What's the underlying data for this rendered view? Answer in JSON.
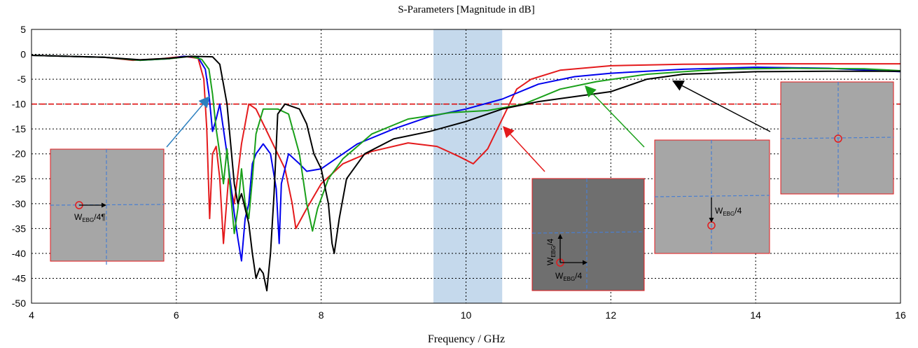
{
  "chart_data": {
    "type": "line",
    "title": "S-Parameters [Magnitude in dB]",
    "xlabel": "Frequency / GHz",
    "ylabel": "",
    "xlim": [
      4,
      16
    ],
    "ylim": [
      -50,
      5
    ],
    "xticks": [
      4,
      6,
      8,
      10,
      12,
      14,
      16
    ],
    "yticks": [
      5,
      0,
      -5,
      -10,
      -15,
      -20,
      -25,
      -30,
      -35,
      -40,
      -45,
      -50
    ],
    "grid": true,
    "threshold": {
      "y": -10,
      "color": "#e00000"
    },
    "band": {
      "x0": 9.55,
      "x1": 10.5,
      "color": "#c5d9ec"
    },
    "series": [
      {
        "color": "#e41a1c",
        "points": [
          [
            4,
            -0.2
          ],
          [
            5,
            -0.6
          ],
          [
            5.4,
            -1.2
          ],
          [
            5.8,
            -0.9
          ],
          [
            6.1,
            -0.4
          ],
          [
            6.3,
            -0.8
          ],
          [
            6.38,
            -5
          ],
          [
            6.42,
            -15
          ],
          [
            6.46,
            -33
          ],
          [
            6.5,
            -20
          ],
          [
            6.55,
            -18.5
          ],
          [
            6.6,
            -25
          ],
          [
            6.65,
            -38
          ],
          [
            6.72,
            -25
          ],
          [
            6.8,
            -30
          ],
          [
            6.9,
            -18
          ],
          [
            7,
            -10
          ],
          [
            7.1,
            -11
          ],
          [
            7.3,
            -17
          ],
          [
            7.5,
            -23
          ],
          [
            7.6,
            -30
          ],
          [
            7.65,
            -35
          ],
          [
            7.8,
            -31
          ],
          [
            8,
            -26
          ],
          [
            8.3,
            -22
          ],
          [
            8.7,
            -19.5
          ],
          [
            9.2,
            -17.8
          ],
          [
            9.6,
            -18.5
          ],
          [
            9.9,
            -20.5
          ],
          [
            10.1,
            -22
          ],
          [
            10.3,
            -19
          ],
          [
            10.5,
            -13
          ],
          [
            10.7,
            -7
          ],
          [
            10.9,
            -5
          ],
          [
            11.3,
            -3.2
          ],
          [
            12,
            -2.3
          ],
          [
            13,
            -2
          ],
          [
            14,
            -1.9
          ],
          [
            15,
            -1.9
          ],
          [
            16,
            -1.9
          ]
        ]
      },
      {
        "color": "#0000ee",
        "points": [
          [
            4,
            -0.2
          ],
          [
            5,
            -0.6
          ],
          [
            5.5,
            -1.2
          ],
          [
            5.9,
            -0.9
          ],
          [
            6.1,
            -0.4
          ],
          [
            6.3,
            -0.6
          ],
          [
            6.4,
            -3
          ],
          [
            6.45,
            -8
          ],
          [
            6.5,
            -15.5
          ],
          [
            6.55,
            -13
          ],
          [
            6.6,
            -10
          ],
          [
            6.7,
            -20
          ],
          [
            6.8,
            -32
          ],
          [
            6.85,
            -37
          ],
          [
            6.9,
            -41.5
          ],
          [
            6.95,
            -33
          ],
          [
            7,
            -30
          ],
          [
            7.05,
            -22
          ],
          [
            7.1,
            -20
          ],
          [
            7.2,
            -18
          ],
          [
            7.3,
            -20
          ],
          [
            7.38,
            -27
          ],
          [
            7.42,
            -38
          ],
          [
            7.45,
            -26
          ],
          [
            7.55,
            -20
          ],
          [
            7.7,
            -22
          ],
          [
            7.8,
            -23.5
          ],
          [
            8,
            -23
          ],
          [
            8.5,
            -18
          ],
          [
            9,
            -15
          ],
          [
            9.5,
            -12.5
          ],
          [
            10,
            -11
          ],
          [
            10.5,
            -9
          ],
          [
            11,
            -6
          ],
          [
            11.5,
            -4.5
          ],
          [
            12,
            -3.8
          ],
          [
            13,
            -3
          ],
          [
            14,
            -2.6
          ],
          [
            15,
            -2.8
          ],
          [
            16,
            -3.5
          ]
        ]
      },
      {
        "color": "#1aa01a",
        "points": [
          [
            4,
            -0.2
          ],
          [
            5,
            -0.6
          ],
          [
            5.5,
            -1.2
          ],
          [
            5.9,
            -0.9
          ],
          [
            6.2,
            -0.4
          ],
          [
            6.35,
            -1
          ],
          [
            6.45,
            -3
          ],
          [
            6.5,
            -8
          ],
          [
            6.55,
            -15
          ],
          [
            6.6,
            -20
          ],
          [
            6.65,
            -26
          ],
          [
            6.7,
            -19
          ],
          [
            6.75,
            -28
          ],
          [
            6.8,
            -36
          ],
          [
            6.85,
            -31
          ],
          [
            6.9,
            -23
          ],
          [
            6.95,
            -30
          ],
          [
            7,
            -33
          ],
          [
            7.05,
            -25
          ],
          [
            7.1,
            -16
          ],
          [
            7.2,
            -11
          ],
          [
            7.4,
            -11
          ],
          [
            7.55,
            -12
          ],
          [
            7.7,
            -20
          ],
          [
            7.8,
            -30
          ],
          [
            7.88,
            -35.5
          ],
          [
            7.95,
            -31
          ],
          [
            8.1,
            -25
          ],
          [
            8.3,
            -21
          ],
          [
            8.7,
            -16
          ],
          [
            9.2,
            -13
          ],
          [
            9.8,
            -11.7
          ],
          [
            10.3,
            -11.3
          ],
          [
            10.8,
            -10
          ],
          [
            11.3,
            -7
          ],
          [
            11.8,
            -5.5
          ],
          [
            12.5,
            -4
          ],
          [
            13.5,
            -3
          ],
          [
            14.5,
            -2.8
          ],
          [
            15.5,
            -2.9
          ],
          [
            16,
            -3.3
          ]
        ]
      },
      {
        "color": "#000000",
        "points": [
          [
            4,
            -0.2
          ],
          [
            5,
            -0.6
          ],
          [
            5.5,
            -1.1
          ],
          [
            5.9,
            -0.8
          ],
          [
            6.2,
            -0.4
          ],
          [
            6.5,
            -0.5
          ],
          [
            6.6,
            -2
          ],
          [
            6.65,
            -6
          ],
          [
            6.7,
            -10
          ],
          [
            6.75,
            -18
          ],
          [
            6.8,
            -26
          ],
          [
            6.85,
            -30
          ],
          [
            6.9,
            -28
          ],
          [
            6.95,
            -31
          ],
          [
            7,
            -34
          ],
          [
            7.05,
            -40
          ],
          [
            7.1,
            -45
          ],
          [
            7.15,
            -43
          ],
          [
            7.2,
            -44
          ],
          [
            7.25,
            -47.5
          ],
          [
            7.3,
            -40
          ],
          [
            7.35,
            -28
          ],
          [
            7.4,
            -12
          ],
          [
            7.5,
            -10
          ],
          [
            7.7,
            -11
          ],
          [
            7.8,
            -14
          ],
          [
            7.9,
            -20
          ],
          [
            8,
            -23
          ],
          [
            8.1,
            -30
          ],
          [
            8.15,
            -38
          ],
          [
            8.18,
            -40
          ],
          [
            8.25,
            -33
          ],
          [
            8.35,
            -25
          ],
          [
            8.6,
            -20
          ],
          [
            9,
            -17
          ],
          [
            9.5,
            -15.5
          ],
          [
            10,
            -13.5
          ],
          [
            10.5,
            -11
          ],
          [
            11,
            -9.5
          ],
          [
            11.5,
            -8.5
          ],
          [
            12,
            -7.5
          ],
          [
            12.5,
            -5
          ],
          [
            13,
            -4
          ],
          [
            14,
            -3.5
          ],
          [
            15,
            -3.4
          ],
          [
            16,
            -3.4
          ]
        ]
      }
    ],
    "annotations": [
      {
        "label": "W",
        "sub": "EBG",
        "suffix": "/4¶",
        "inset": 0
      },
      {
        "label": "W",
        "sub": "EBG",
        "suffix": "/4",
        "inset": 1,
        "orient": "vertical"
      },
      {
        "label": "W",
        "sub": "EBG",
        "suffix": "/4",
        "inset": 1,
        "orient": "horizontal"
      },
      {
        "label": "W",
        "sub": "EBG",
        "suffix": "/4",
        "inset": 2
      }
    ]
  }
}
